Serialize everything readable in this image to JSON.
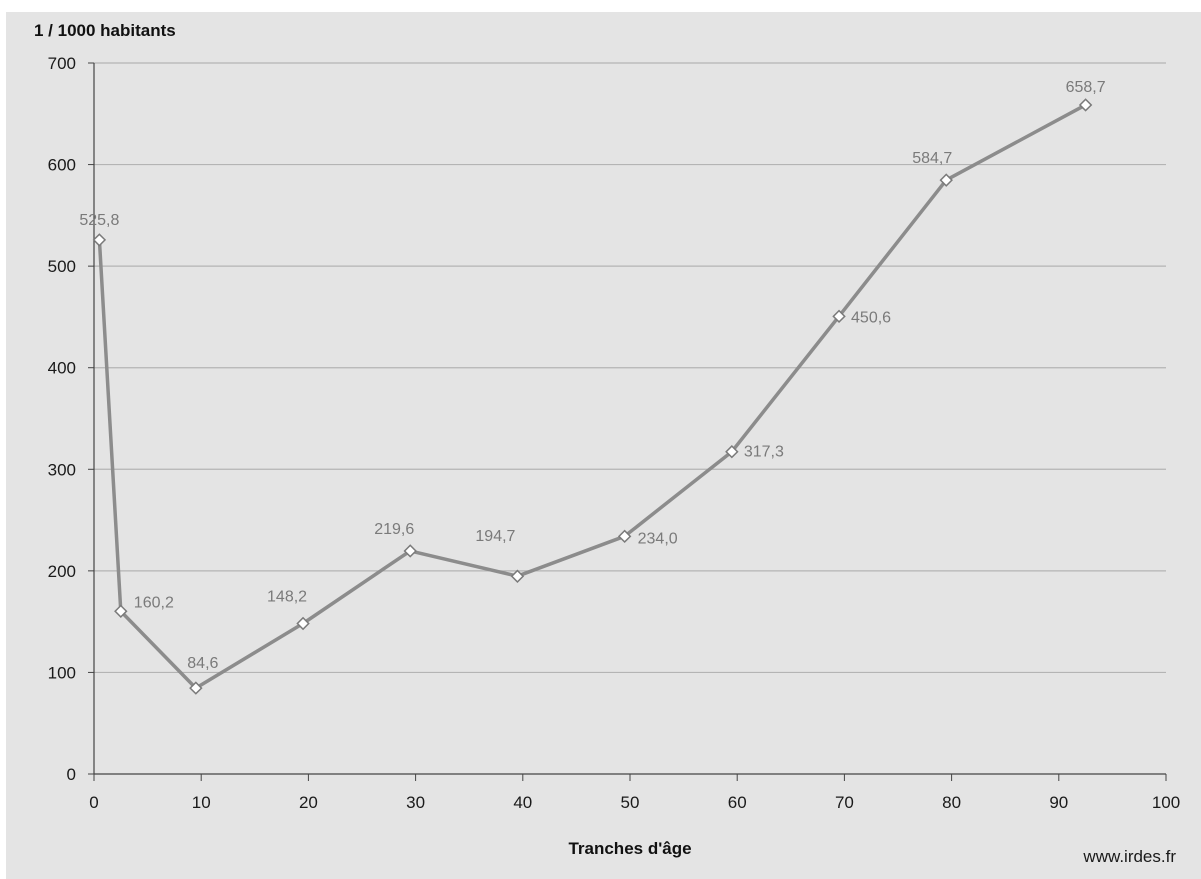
{
  "chart_data": {
    "type": "line",
    "ylabel": "1 / 1000 habitants",
    "xlabel": "Tranches d'âge",
    "source": "www.irdes.fr",
    "xlim": [
      0,
      100
    ],
    "ylim": [
      0,
      700
    ],
    "x_ticks": [
      0,
      10,
      20,
      30,
      40,
      50,
      60,
      70,
      80,
      90,
      100
    ],
    "y_ticks": [
      0,
      100,
      200,
      300,
      400,
      500,
      600,
      700
    ],
    "grid": "horizontal",
    "colors": {
      "background": "#e4e4e4",
      "line": "#8c8c8c",
      "grid": "#b4b4b4",
      "marker_fill": "#ffffff",
      "data_label": "#7a7a7a"
    },
    "series": [
      {
        "points": [
          {
            "x": 0.5,
            "y": 525.8,
            "label": "525,8"
          },
          {
            "x": 2.5,
            "y": 160.2,
            "label": "160,2"
          },
          {
            "x": 9.5,
            "y": 84.6,
            "label": "84,6"
          },
          {
            "x": 19.5,
            "y": 148.2,
            "label": "148,2"
          },
          {
            "x": 29.5,
            "y": 219.6,
            "label": "219,6"
          },
          {
            "x": 39.5,
            "y": 194.7,
            "label": "194,7"
          },
          {
            "x": 49.5,
            "y": 234.0,
            "label": "234,0"
          },
          {
            "x": 59.5,
            "y": 317.3,
            "label": "317,3"
          },
          {
            "x": 69.5,
            "y": 450.6,
            "label": "450,6"
          },
          {
            "x": 79.5,
            "y": 584.7,
            "label": "584,7"
          },
          {
            "x": 92.5,
            "y": 658.7,
            "label": "658,7"
          }
        ]
      }
    ]
  }
}
